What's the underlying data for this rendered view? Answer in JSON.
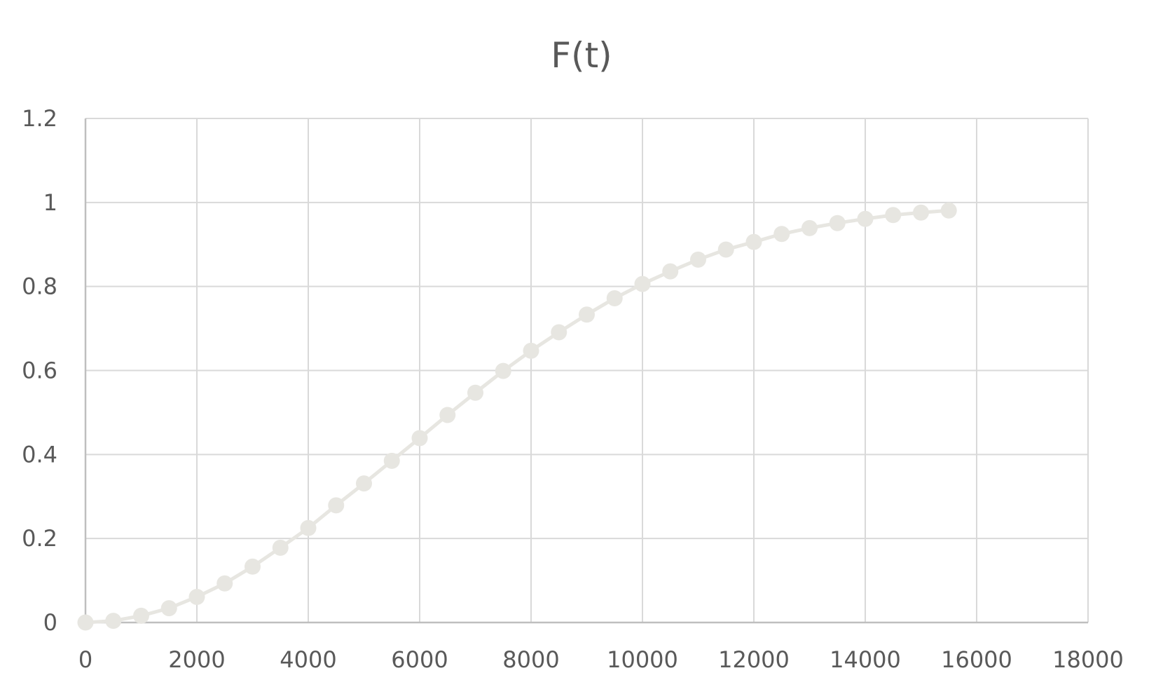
{
  "chart_data": {
    "type": "line",
    "title": "F(t)",
    "xlabel": "",
    "ylabel": "",
    "xlim": [
      0,
      18000
    ],
    "ylim": [
      0,
      1.2
    ],
    "x_ticks": [
      0,
      2000,
      4000,
      6000,
      8000,
      10000,
      12000,
      14000,
      16000,
      18000
    ],
    "y_ticks": [
      0,
      0.2,
      0.4,
      0.6,
      0.8,
      1,
      1.2
    ],
    "grid": true,
    "legend": "none",
    "colors": {
      "series": "#E7E6E1",
      "grid": "#D9D9D9",
      "text": "#595959"
    },
    "series": [
      {
        "x": [
          0,
          500,
          1000,
          1500,
          2000,
          2500,
          3000,
          3500,
          4000,
          4500,
          5000,
          5500,
          6000,
          6500,
          7000,
          7500,
          8000,
          8500,
          9000,
          9500,
          10000,
          10500,
          11000,
          11500,
          12000,
          12500,
          13000,
          13500,
          14000,
          14500,
          15000,
          15500
        ],
        "y": [
          0,
          0.004,
          0.016,
          0.034,
          0.061,
          0.093,
          0.133,
          0.178,
          0.225,
          0.279,
          0.331,
          0.385,
          0.439,
          0.494,
          0.547,
          0.599,
          0.647,
          0.691,
          0.733,
          0.772,
          0.806,
          0.836,
          0.864,
          0.888,
          0.906,
          0.925,
          0.939,
          0.951,
          0.961,
          0.97,
          0.976,
          0.981
        ]
      }
    ]
  }
}
